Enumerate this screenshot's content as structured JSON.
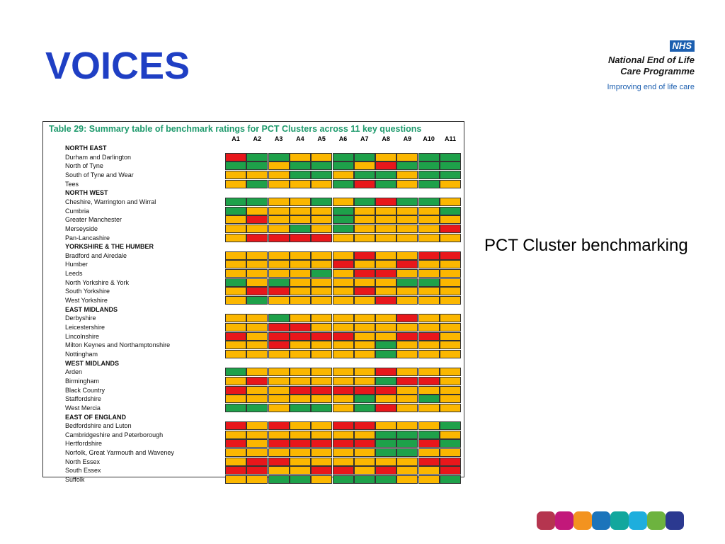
{
  "slide": {
    "title": "VOICES",
    "caption": "PCT Cluster benchmarking"
  },
  "logo": {
    "badge": "NHS",
    "line1": "National End of Life",
    "line2": "Care Programme",
    "tagline": "Improving end of life care"
  },
  "colors": {
    "title": "#1f3fc4",
    "red": "#e8171b",
    "amber": "#fbb700",
    "green": "#1ea14a"
  },
  "table": {
    "title": "Table 29: Summary table of benchmark ratings for PCT Clusters across 11 key questions",
    "columns": [
      "A1",
      "A2",
      "A3",
      "A4",
      "A5",
      "A6",
      "A7",
      "A8",
      "A9",
      "A10",
      "A11"
    ],
    "rows": [
      {
        "label": "NORTH EAST",
        "region": true
      },
      {
        "label": "Durham and Darlington",
        "ratings": "rggaaggaagg"
      },
      {
        "label": "North of Tyne",
        "ratings": "ggagggarggg"
      },
      {
        "label": "South of Tyne and Wear",
        "ratings": "aaaggaggagg"
      },
      {
        "label": "Tees",
        "ratings": "agaaagrgaga"
      },
      {
        "label": "NORTH WEST",
        "region": true
      },
      {
        "label": "Cheshire, Warrington and Wirral",
        "ratings": "ggaagagrgga"
      },
      {
        "label": "Cumbria",
        "ratings": "gaaaagaaaag"
      },
      {
        "label": "Greater Manchester",
        "ratings": "araaagaaaaa"
      },
      {
        "label": "Merseyside",
        "ratings": "aaagagaaaar"
      },
      {
        "label": "Pan-Lancashire",
        "ratings": "arrrraaaaaa"
      },
      {
        "label": "YORKSHIRE & THE HUMBER",
        "region": true
      },
      {
        "label": "Bradford and Airedale",
        "ratings": "aaaaaaraarr"
      },
      {
        "label": "Humber",
        "ratings": "aaaaaraaraa"
      },
      {
        "label": "Leeds",
        "ratings": "aaaagarraaa"
      },
      {
        "label": "North Yorkshire & York",
        "ratings": "gagaaaaagga"
      },
      {
        "label": "South Yorkshire",
        "ratings": "arraaaraaaa"
      },
      {
        "label": "West Yorkshire",
        "ratings": "agaaaaaraaa"
      },
      {
        "label": "EAST MIDLANDS",
        "region": true
      },
      {
        "label": "Derbyshire",
        "ratings": "aagaaaaaraa"
      },
      {
        "label": "Leicestershire",
        "ratings": "aarraaaaaaa"
      },
      {
        "label": "Lincolnshire",
        "ratings": "rarrrraarra"
      },
      {
        "label": "Milton Keynes and Northamptonshire",
        "ratings": "aaraaaagaaa"
      },
      {
        "label": "Nottingham",
        "ratings": "aaaaaaagaaa"
      },
      {
        "label": "WEST MIDLANDS",
        "region": true
      },
      {
        "label": "Arden",
        "ratings": "gaaaaaaraaa"
      },
      {
        "label": "Birmingham",
        "ratings": "araaaaagrra"
      },
      {
        "label": "Black Country",
        "ratings": "raarrrrraaa"
      },
      {
        "label": "Staffordshire",
        "ratings": "aaaaaagaaga"
      },
      {
        "label": "West Mercia",
        "ratings": "ggaggagraaa"
      },
      {
        "label": "EAST OF ENGLAND",
        "region": true
      },
      {
        "label": "Bedfordshire and Luton",
        "ratings": "raraarraaag"
      },
      {
        "label": "Cambridgeshire and Peterborough",
        "ratings": "aaaaaaaggga"
      },
      {
        "label": "Hertfordshire",
        "ratings": "rarrrrrggrg"
      },
      {
        "label": "Norfolk, Great Yarmouth and Waveney",
        "ratings": "aaaaaaaggaa"
      },
      {
        "label": "North Essex",
        "ratings": "arraaaaaarr"
      },
      {
        "label": "South Essex",
        "ratings": "rraarraraar"
      },
      {
        "label": "Suffolk",
        "ratings": "aaggagggaag"
      }
    ]
  },
  "swatches": [
    "#b5354f",
    "#c2187a",
    "#f3931f",
    "#1b74bb",
    "#12a79d",
    "#1eaedd",
    "#6db33f",
    "#2b3990"
  ]
}
